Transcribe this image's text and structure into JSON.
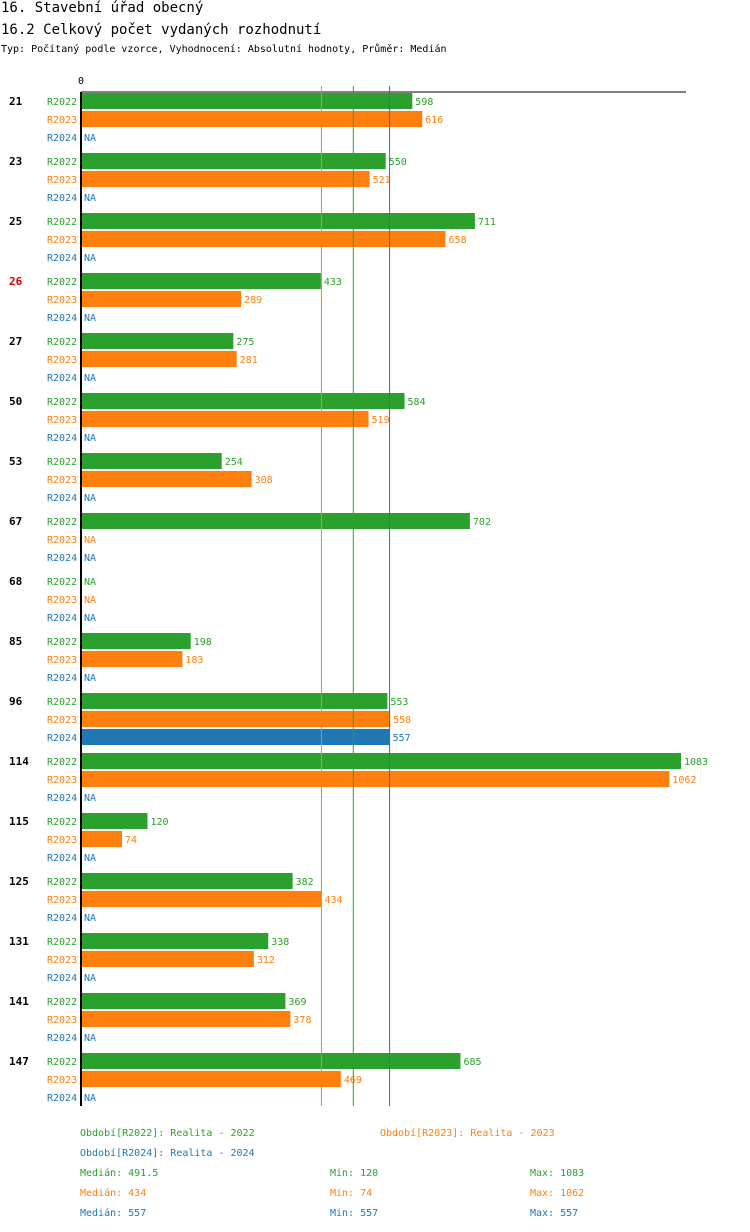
{
  "header": {
    "title": "16. Stavební úřad obecný",
    "subtitle": "16.2 Celkový počet vydaných rozhodnutí",
    "type_line": "Typ: Počítaný podle vzorce, Vyhodnocení: Absolutní hodnoty, Průměr: Medián"
  },
  "colors": {
    "R2022": "#2ca02c",
    "R2023": "#ff7f0e",
    "R2024": "#1f77b4",
    "highlight": "#cc0000"
  },
  "chart_data": {
    "type": "bar",
    "orientation": "horizontal",
    "axis_label_zero": "0",
    "xlim": [
      0,
      1083
    ],
    "series_names": [
      "R2022",
      "R2023",
      "R2024"
    ],
    "na_label": "NA",
    "highlight_category": "26",
    "categories": [
      {
        "label": "21",
        "values": [
          598,
          616,
          null
        ]
      },
      {
        "label": "23",
        "values": [
          550,
          521,
          null
        ]
      },
      {
        "label": "25",
        "values": [
          711,
          658,
          null
        ]
      },
      {
        "label": "26",
        "values": [
          433,
          289,
          null
        ]
      },
      {
        "label": "27",
        "values": [
          275,
          281,
          null
        ]
      },
      {
        "label": "50",
        "values": [
          584,
          519,
          null
        ]
      },
      {
        "label": "53",
        "values": [
          254,
          308,
          null
        ]
      },
      {
        "label": "67",
        "values": [
          702,
          null,
          null
        ]
      },
      {
        "label": "68",
        "values": [
          null,
          null,
          null
        ]
      },
      {
        "label": "85",
        "values": [
          198,
          183,
          null
        ]
      },
      {
        "label": "96",
        "values": [
          553,
          558,
          557
        ]
      },
      {
        "label": "114",
        "values": [
          1083,
          1062,
          null
        ]
      },
      {
        "label": "115",
        "values": [
          120,
          74,
          null
        ]
      },
      {
        "label": "125",
        "values": [
          382,
          434,
          null
        ]
      },
      {
        "label": "131",
        "values": [
          338,
          312,
          null
        ]
      },
      {
        "label": "141",
        "values": [
          369,
          378,
          null
        ]
      },
      {
        "label": "147",
        "values": [
          685,
          469,
          null
        ]
      }
    ],
    "reference_lines": [
      {
        "series": "R2023",
        "value": 434
      },
      {
        "series": "R2022",
        "value": 491.5
      },
      {
        "series": "R2024",
        "value": 557
      }
    ]
  },
  "legend": {
    "period_r2022": "Období[R2022]: Realita - 2022",
    "period_r2023": "Období[R2023]: Realita - 2023",
    "period_r2024": "Období[R2024]: Realita - 2024",
    "stats": [
      {
        "median": "Medián: 491.5",
        "min": "Min: 120",
        "max": "Max: 1083"
      },
      {
        "median": "Medián: 434",
        "min": "Min: 74",
        "max": "Max: 1062"
      },
      {
        "median": "Medián: 557",
        "min": "Min: 557",
        "max": "Max: 557"
      }
    ]
  }
}
